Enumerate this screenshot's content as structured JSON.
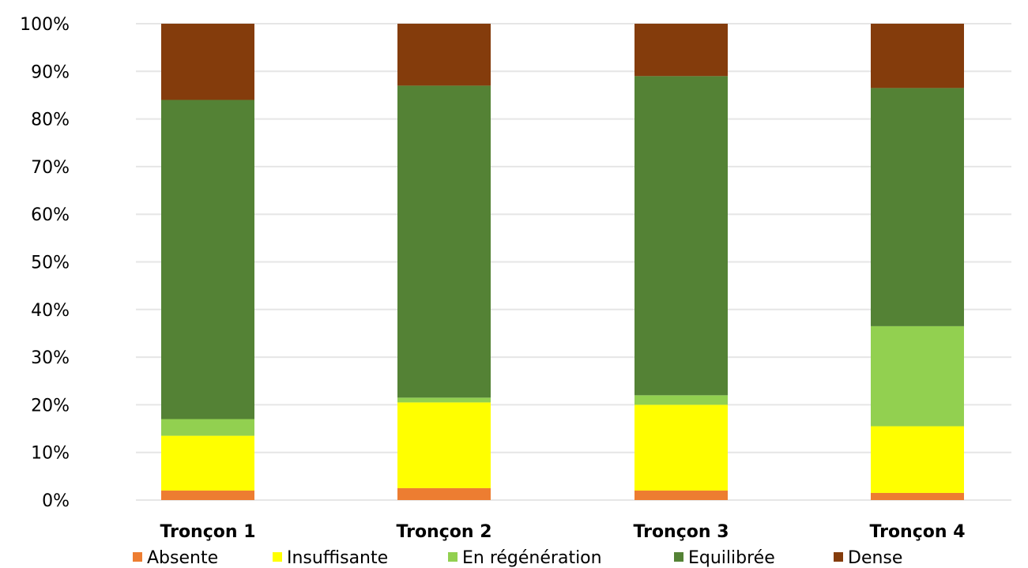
{
  "chart_data": {
    "type": "bar",
    "stacked": true,
    "percent": true,
    "categories": [
      "Tronçon 1",
      "Tronçon 2",
      "Tronçon 3",
      "Tronçon 4"
    ],
    "series": [
      {
        "name": "Absente",
        "color": "#ed7d31",
        "values": [
          2,
          2.5,
          2,
          1.5
        ]
      },
      {
        "name": "Insuffisante",
        "color": "#ffff00",
        "values": [
          11.5,
          18,
          18,
          14
        ]
      },
      {
        "name": "En régénération",
        "color": "#92d050",
        "values": [
          3.5,
          1,
          2,
          21
        ]
      },
      {
        "name": "Equilibrée",
        "color": "#548235",
        "values": [
          67,
          65.5,
          67,
          50
        ]
      },
      {
        "name": "Dense",
        "color": "#843c0c",
        "values": [
          16,
          13,
          11,
          13.5
        ]
      }
    ],
    "yticks": [
      "0%",
      "10%",
      "20%",
      "30%",
      "40%",
      "50%",
      "60%",
      "70%",
      "80%",
      "90%",
      "100%"
    ],
    "ylim": [
      0,
      100
    ],
    "grid": true,
    "legend_position": "bottom",
    "title": "",
    "xlabel": "",
    "ylabel": ""
  }
}
